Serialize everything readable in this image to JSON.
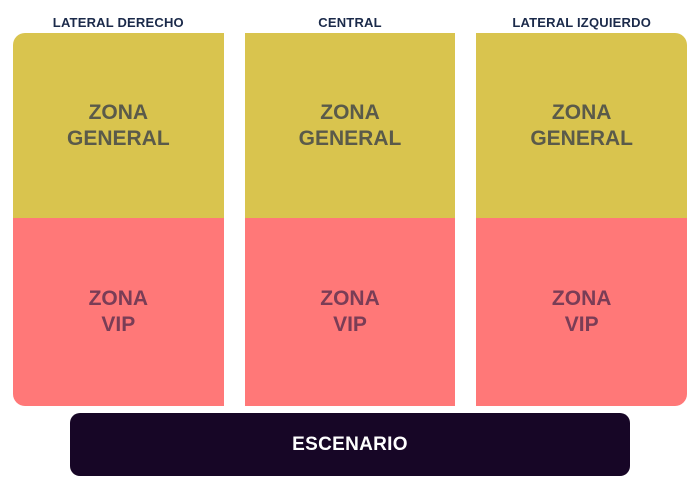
{
  "colors": {
    "general_zone": "#d9c44e",
    "vip_zone": "#ff7878",
    "stage": "#170626",
    "section_title": "#1b2a4a"
  },
  "sections": [
    {
      "title": "LATERAL DERECHO",
      "general_label": "ZONA\nGENERAL",
      "vip_label": "ZONA\nVIP"
    },
    {
      "title": "CENTRAL",
      "general_label": "ZONA\nGENERAL",
      "vip_label": "ZONA\nVIP"
    },
    {
      "title": "LATERAL IZQUIERDO",
      "general_label": "ZONA\nGENERAL",
      "vip_label": "ZONA\nVIP"
    }
  ],
  "stage": {
    "label": "ESCENARIO"
  }
}
